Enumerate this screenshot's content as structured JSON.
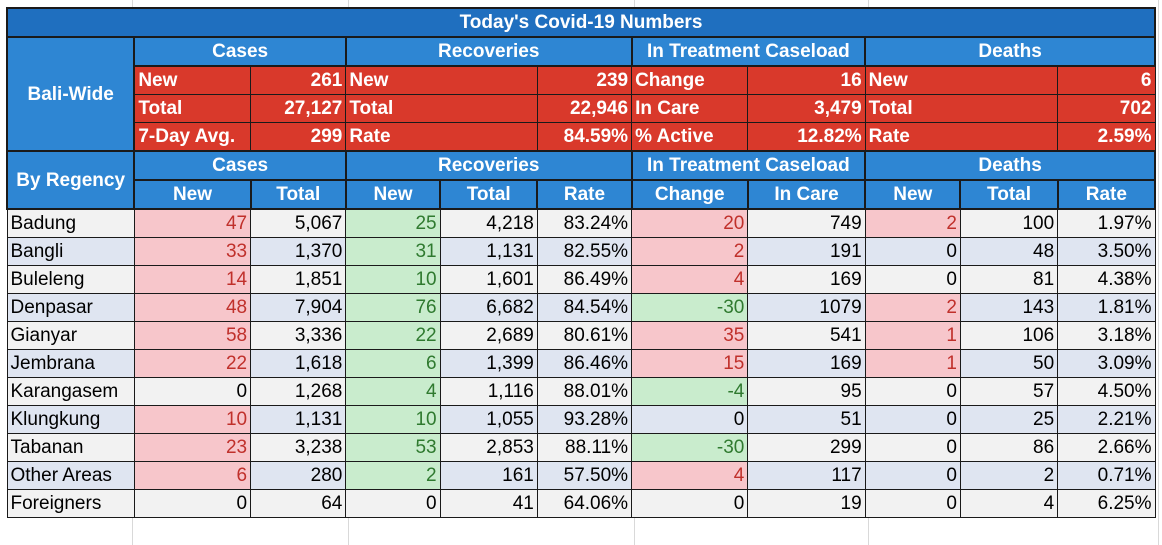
{
  "title": "Today's Covid-19 Numbers",
  "groups": [
    "Cases",
    "Recoveries",
    "In Treatment Caseload",
    "Deaths"
  ],
  "bali_wide": {
    "label": "Bali-Wide",
    "rows": [
      {
        "cases_label": "New",
        "cases_value": "261",
        "rec_label": "New",
        "rec_value": "239",
        "treat_label": "Change",
        "treat_value": "16",
        "deaths_label": "New",
        "deaths_value": "6"
      },
      {
        "cases_label": "Total",
        "cases_value": "27,127",
        "rec_label": "Total",
        "rec_value": "22,946",
        "treat_label": "In Care",
        "treat_value": "3,479",
        "deaths_label": "Total",
        "deaths_value": "702"
      },
      {
        "cases_label": "7-Day Avg.",
        "cases_value": "299",
        "rec_label": "Rate",
        "rec_value": "84.59%",
        "treat_label": "% Active",
        "treat_value": "12.82%",
        "deaths_label": "Rate",
        "deaths_value": "2.59%"
      }
    ]
  },
  "by_regency": {
    "label": "By Regency",
    "columns": [
      "New",
      "Total",
      "New",
      "Total",
      "Rate",
      "Change",
      "In Care",
      "New",
      "Total",
      "Rate"
    ],
    "rows": [
      {
        "name": "Badung",
        "c_new": "47",
        "c_total": "5,067",
        "r_new": "25",
        "r_total": "4,218",
        "r_rate": "83.24%",
        "t_change": "20",
        "t_care": "749",
        "d_new": "2",
        "d_total": "100",
        "d_rate": "1.97%"
      },
      {
        "name": "Bangli",
        "c_new": "33",
        "c_total": "1,370",
        "r_new": "31",
        "r_total": "1,131",
        "r_rate": "82.55%",
        "t_change": "2",
        "t_care": "191",
        "d_new": "0",
        "d_total": "48",
        "d_rate": "3.50%"
      },
      {
        "name": "Buleleng",
        "c_new": "14",
        "c_total": "1,851",
        "r_new": "10",
        "r_total": "1,601",
        "r_rate": "86.49%",
        "t_change": "4",
        "t_care": "169",
        "d_new": "0",
        "d_total": "81",
        "d_rate": "4.38%"
      },
      {
        "name": "Denpasar",
        "c_new": "48",
        "c_total": "7,904",
        "r_new": "76",
        "r_total": "6,682",
        "r_rate": "84.54%",
        "t_change": "-30",
        "t_care": "1079",
        "d_new": "2",
        "d_total": "143",
        "d_rate": "1.81%"
      },
      {
        "name": "Gianyar",
        "c_new": "58",
        "c_total": "3,336",
        "r_new": "22",
        "r_total": "2,689",
        "r_rate": "80.61%",
        "t_change": "35",
        "t_care": "541",
        "d_new": "1",
        "d_total": "106",
        "d_rate": "3.18%"
      },
      {
        "name": "Jembrana",
        "c_new": "22",
        "c_total": "1,618",
        "r_new": "6",
        "r_total": "1,399",
        "r_rate": "86.46%",
        "t_change": "15",
        "t_care": "169",
        "d_new": "1",
        "d_total": "50",
        "d_rate": "3.09%"
      },
      {
        "name": "Karangasem",
        "c_new": "0",
        "c_total": "1,268",
        "r_new": "4",
        "r_total": "1,116",
        "r_rate": "88.01%",
        "t_change": "-4",
        "t_care": "95",
        "d_new": "0",
        "d_total": "57",
        "d_rate": "4.50%"
      },
      {
        "name": "Klungkung",
        "c_new": "10",
        "c_total": "1,131",
        "r_new": "10",
        "r_total": "1,055",
        "r_rate": "93.28%",
        "t_change": "0",
        "t_care": "51",
        "d_new": "0",
        "d_total": "25",
        "d_rate": "2.21%"
      },
      {
        "name": "Tabanan",
        "c_new": "23",
        "c_total": "3,238",
        "r_new": "53",
        "r_total": "2,853",
        "r_rate": "88.11%",
        "t_change": "-30",
        "t_care": "299",
        "d_new": "0",
        "d_total": "86",
        "d_rate": "2.66%"
      },
      {
        "name": "Other Areas",
        "c_new": "6",
        "c_total": "280",
        "r_new": "2",
        "r_total": "161",
        "r_rate": "57.50%",
        "t_change": "4",
        "t_care": "117",
        "d_new": "0",
        "d_total": "2",
        "d_rate": "0.71%"
      },
      {
        "name": "Foreigners",
        "c_new": "0",
        "c_total": "64",
        "r_new": "0",
        "r_total": "41",
        "r_rate": "64.06%",
        "t_change": "0",
        "t_care": "19",
        "d_new": "0",
        "d_total": "4",
        "d_rate": "6.25%"
      }
    ]
  },
  "colors": {
    "header_blue": "#2e86d3",
    "title_blue": "#1f6fbf",
    "summary_red": "#d9392b",
    "increase_fill": "#f7c6cb",
    "increase_text": "#c0302b",
    "decrease_fill": "#c9eccd",
    "decrease_text": "#2f7a2f",
    "row_band": "#dfe5f1"
  }
}
